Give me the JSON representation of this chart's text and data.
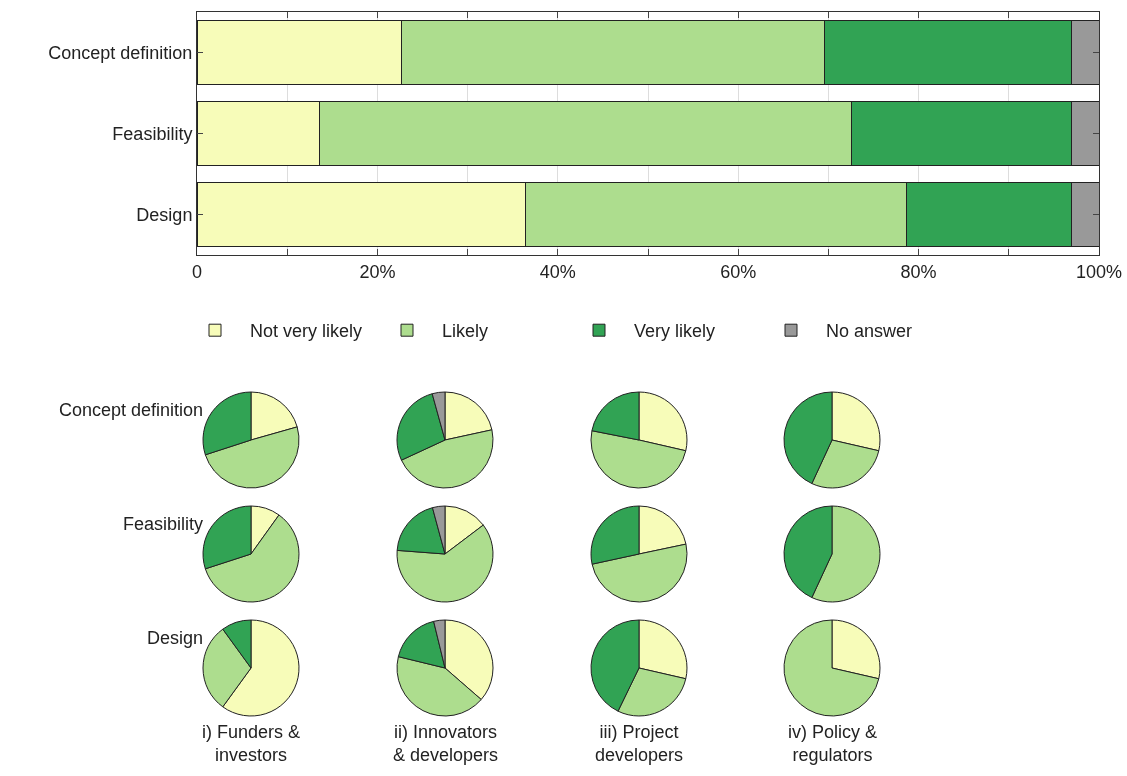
{
  "chart_data": [
    {
      "type": "bar",
      "orientation": "horizontal",
      "stacked": true,
      "categories": [
        "Concept definition",
        "Feasibility",
        "Design"
      ],
      "series": [
        {
          "name": "Not very likely",
          "color": "#f7fcb9",
          "values": [
            22.7,
            13.6,
            36.4
          ]
        },
        {
          "name": "Likely",
          "color": "#addd8e",
          "values": [
            46.9,
            59.0,
            42.3
          ]
        },
        {
          "name": "Very likely",
          "color": "#31a354",
          "values": [
            27.3,
            24.3,
            18.2
          ]
        },
        {
          "name": "No answer",
          "color": "#999999",
          "values": [
            3.1,
            3.1,
            3.1
          ]
        }
      ],
      "xlim": [
        0,
        100
      ],
      "xticks": [
        0,
        {
          "value": 10,
          "label": null
        },
        {
          "value": 20,
          "label": "20%"
        },
        {
          "value": 30,
          "label": null
        },
        {
          "value": 40,
          "label": "40%"
        },
        {
          "value": 50,
          "label": null
        },
        {
          "value": 60,
          "label": "60%"
        },
        {
          "value": 70,
          "label": null
        },
        {
          "value": 80,
          "label": "80%"
        },
        {
          "value": 90,
          "label": null
        },
        {
          "value": 100,
          "label": "100%"
        }
      ],
      "grid": "x",
      "legend": "bottom"
    },
    {
      "type": "pie",
      "ylabel": "Concept definition",
      "categories": [
        null,
        null,
        null
      ],
      "values": [
        20.6,
        49.4,
        30.0
      ],
      "colors": [
        "#f7fcb9",
        "#addd8e",
        "#31a354"
      ]
    },
    {
      "type": "pie",
      "categories": [
        null,
        null,
        null,
        null
      ],
      "values": [
        21.6,
        46.5,
        27.6,
        4.3
      ],
      "colors": [
        "#f7fcb9",
        "#addd8e",
        "#31a354",
        "#999999"
      ]
    },
    {
      "type": "pie",
      "categories": [
        null,
        null,
        null
      ],
      "values": [
        28.6,
        49.5,
        21.9
      ],
      "colors": [
        "#f7fcb9",
        "#addd8e",
        "#31a354"
      ]
    },
    {
      "type": "pie",
      "categories": [
        null,
        null,
        null
      ],
      "values": [
        28.6,
        28.3,
        43.1
      ],
      "colors": [
        "#f7fcb9",
        "#addd8e",
        "#31a354"
      ]
    },
    {
      "type": "pie",
      "ylabel": "Feasibility",
      "categories": [
        null,
        null,
        null
      ],
      "values": [
        9.9,
        60.1,
        30.0
      ],
      "colors": [
        "#f7fcb9",
        "#addd8e",
        "#31a354"
      ]
    },
    {
      "type": "pie",
      "categories": [
        null,
        null,
        null,
        null
      ],
      "values": [
        14.7,
        61.5,
        19.6,
        4.2
      ],
      "colors": [
        "#f7fcb9",
        "#addd8e",
        "#31a354",
        "#999999"
      ]
    },
    {
      "type": "pie",
      "categories": [
        null,
        null,
        null
      ],
      "values": [
        21.7,
        49.9,
        28.4
      ],
      "colors": [
        "#f7fcb9",
        "#addd8e",
        "#31a354"
      ]
    },
    {
      "type": "pie",
      "categories": [
        null,
        null
      ],
      "values": [
        56.9,
        43.1
      ],
      "colors": [
        "#addd8e",
        "#31a354"
      ]
    },
    {
      "type": "pie",
      "ylabel": "Design",
      "xlabel": "i) Funders & investors",
      "categories": [
        null,
        null,
        null
      ],
      "values": [
        60.0,
        30.0,
        10.0
      ],
      "colors": [
        "#f7fcb9",
        "#addd8e",
        "#31a354"
      ]
    },
    {
      "type": "pie",
      "xlabel": "ii) Innovators & developers",
      "categories": [
        null,
        null,
        null,
        null
      ],
      "values": [
        36.4,
        42.4,
        17.4,
        3.8
      ],
      "colors": [
        "#f7fcb9",
        "#addd8e",
        "#31a354",
        "#999999"
      ]
    },
    {
      "type": "pie",
      "xlabel": "iii) Project developers",
      "categories": [
        null,
        null,
        null
      ],
      "values": [
        28.6,
        28.6,
        42.8
      ],
      "colors": [
        "#f7fcb9",
        "#addd8e",
        "#31a354"
      ]
    },
    {
      "type": "pie",
      "xlabel": "iv) Policy & regulators",
      "categories": [
        null,
        null
      ],
      "values": [
        28.6,
        71.4
      ],
      "colors": [
        "#f7fcb9",
        "#addd8e"
      ]
    }
  ]
}
